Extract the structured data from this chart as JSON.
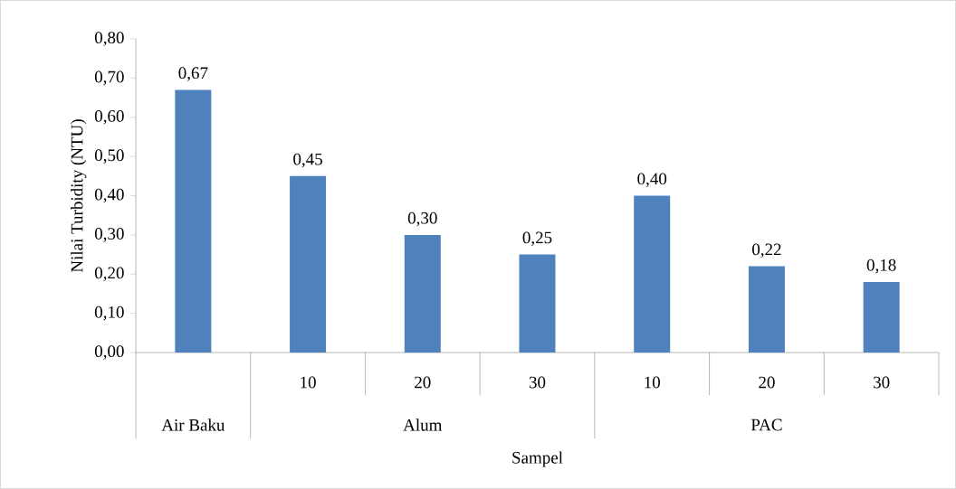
{
  "chart_data": {
    "type": "bar",
    "xlabel": "Sampel",
    "ylabel": "Nilai Turbidity (NTU)",
    "categories": [
      null,
      "10",
      "20",
      "30",
      "10",
      "20",
      "30"
    ],
    "values": [
      0.67,
      0.45,
      0.3,
      0.25,
      0.4,
      0.22,
      0.18
    ],
    "value_labels": [
      "0,67",
      "0,45",
      "0,30",
      "0,25",
      "0,40",
      "0,22",
      "0,18"
    ],
    "color": "#4f81bd",
    "ylim": [
      0,
      0.8
    ],
    "yticks": [
      {
        "value": 0,
        "label": "0,00"
      },
      {
        "value": 0.1,
        "label": "0,10"
      },
      {
        "value": 0.2,
        "label": "0,20"
      },
      {
        "value": 0.3,
        "label": "0,30"
      },
      {
        "value": 0.4,
        "label": "0,40"
      },
      {
        "value": 0.5,
        "label": "0,50"
      },
      {
        "value": 0.6,
        "label": "0,60"
      },
      {
        "value": 0.7,
        "label": "0,70"
      },
      {
        "value": 0.8,
        "label": "0,80"
      }
    ],
    "annotations": [
      "Air Baku",
      "Alum",
      "PAC"
    ],
    "grid": false
  }
}
